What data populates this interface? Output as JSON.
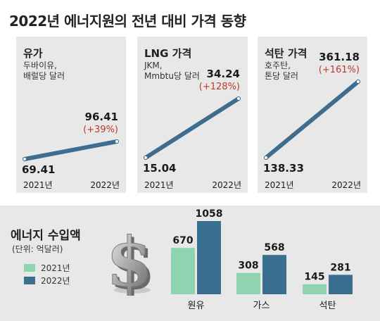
{
  "page": {
    "title": "2022년 에너지원의 전년 대비 가격 동향"
  },
  "colors": {
    "line": "#3f6d8f",
    "increase": "#c0392b",
    "bar_2021": "#8fd4b0",
    "bar_2022": "#3b6f8f",
    "panel_bg": "#e8e8e8"
  },
  "chart_data": [
    {
      "type": "line",
      "title": "유가",
      "subtitle": "두바이유,\n배럴당 달러",
      "x": [
        "2021년",
        "2022년"
      ],
      "series": [
        {
          "values": [
            69.41,
            96.41
          ]
        }
      ],
      "change_label": "(+39%)"
    },
    {
      "type": "line",
      "title": "LNG 가격",
      "subtitle": "JKM,\nMmbtu당 달러",
      "x": [
        "2021년",
        "2022년"
      ],
      "series": [
        {
          "values": [
            15.04,
            34.24
          ]
        }
      ],
      "change_label": "(+128%)"
    },
    {
      "type": "line",
      "title": "석탄 가격",
      "subtitle": "호주탄,\n톤당 달러",
      "x": [
        "2021년",
        "2022년"
      ],
      "series": [
        {
          "values": [
            138.33,
            361.18
          ]
        }
      ],
      "change_label": "(+161%)"
    },
    {
      "type": "bar",
      "title": "에너지 수입액",
      "unit_label": "(단위: 억달러)",
      "categories": [
        "원유",
        "가스",
        "석탄"
      ],
      "series": [
        {
          "name": "2021년",
          "values": [
            670,
            308,
            145
          ]
        },
        {
          "name": "2022년",
          "values": [
            1058,
            568,
            281
          ]
        }
      ]
    }
  ],
  "decoration": {
    "icon": "dollar-sign-icon"
  }
}
